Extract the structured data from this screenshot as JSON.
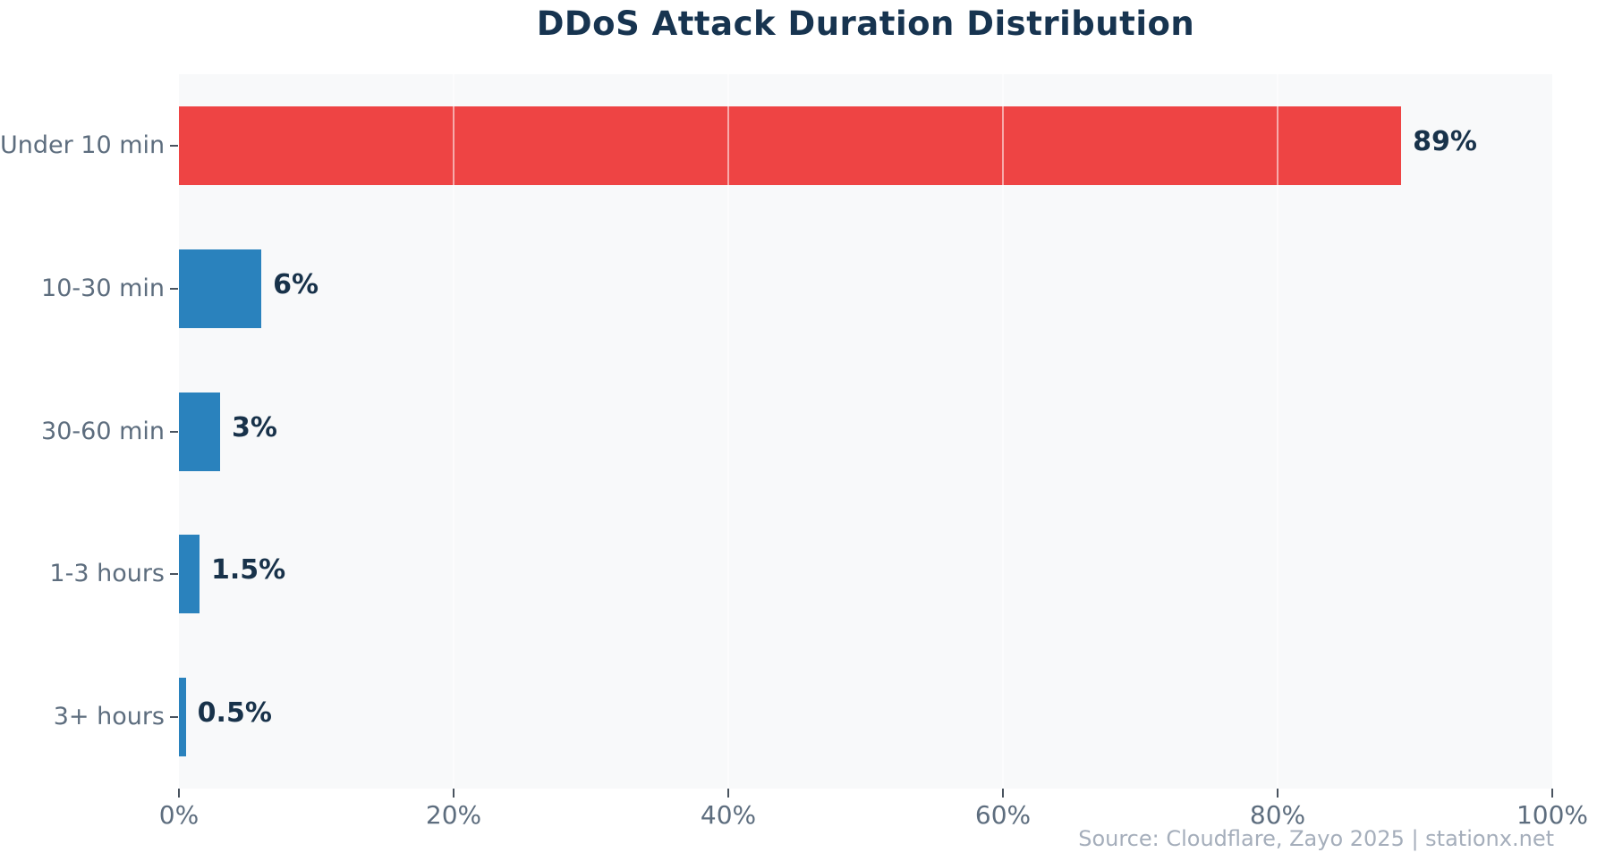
{
  "title": "DDoS Attack Duration Distribution",
  "footer": {
    "source_text": "Source: Cloudflare, Zayo 2025 | stationx.net"
  },
  "colors": {
    "highlight_red": "#ee4444",
    "bar_blue": "#2a82bd",
    "title_navy": "#173450",
    "value_label_navy": "#18324a",
    "axis_label_gray": "#5d6d7e",
    "tick_mark_gray": "#49535f",
    "source_gray": "#a5aebb",
    "plot_background": "#f8f9fa",
    "gridline": "#ffffff"
  },
  "chart_data": {
    "type": "bar",
    "orientation": "horizontal",
    "title": "DDoS Attack Duration Distribution",
    "categories": [
      "Under 10 min",
      "10-30 min",
      "30-60 min",
      "1-3 hours",
      "3+ hours"
    ],
    "values": [
      89,
      6,
      3,
      1.5,
      0.5
    ],
    "value_labels": [
      "89%",
      "6%",
      "3%",
      "1.5%",
      "0.5%"
    ],
    "bar_colors": [
      "#ee4444",
      "#2a82bd",
      "#2a82bd",
      "#2a82bd",
      "#2a82bd"
    ],
    "xlabel": "",
    "ylabel": "",
    "xlim": [
      0,
      100
    ],
    "xticks": {
      "values": [
        0,
        20,
        40,
        60,
        80,
        100
      ],
      "labels": [
        "0%",
        "20%",
        "40%",
        "60%",
        "80%",
        "100%"
      ]
    },
    "grid": true,
    "grid_orientation": "vertical",
    "legend": "none"
  }
}
